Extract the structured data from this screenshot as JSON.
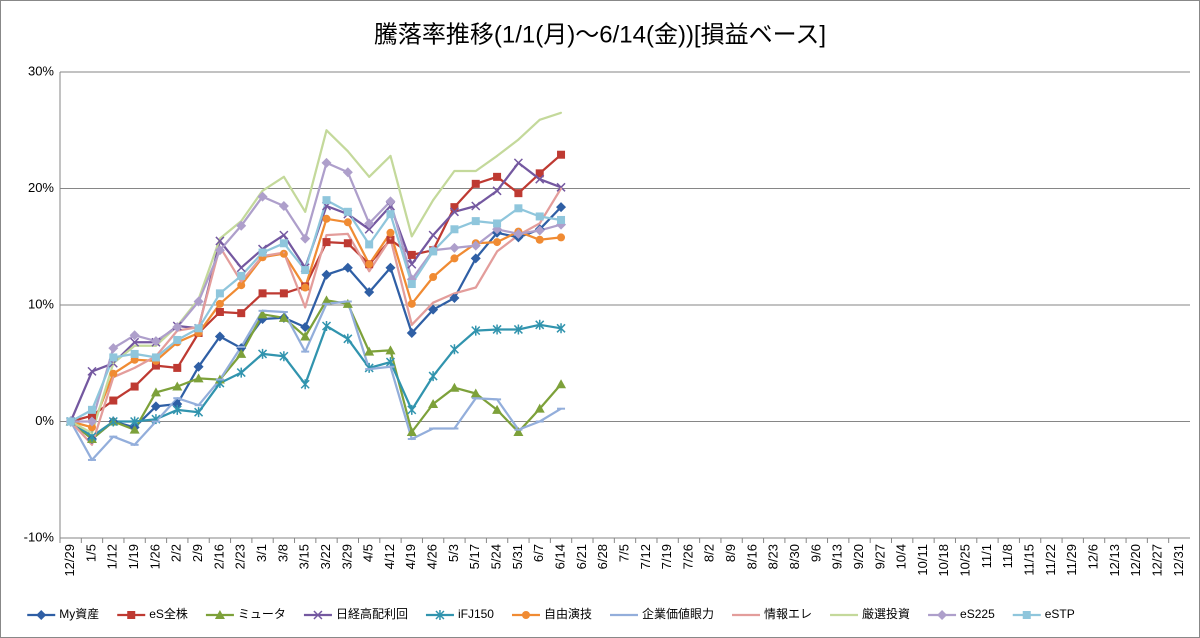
{
  "chart_data": {
    "type": "line",
    "title": "騰落率推移(1/1(月)～6/14(金))[損益ベース]",
    "categories": [
      "12/29",
      "1/5",
      "1/12",
      "1/19",
      "1/26",
      "2/2",
      "2/9",
      "2/16",
      "2/23",
      "3/1",
      "3/8",
      "3/15",
      "3/22",
      "3/29",
      "4/5",
      "4/12",
      "4/19",
      "4/26",
      "5/3",
      "5/17",
      "5/24",
      "5/31",
      "6/7",
      "6/14",
      "6/21",
      "6/28",
      "7/5",
      "7/12",
      "7/19",
      "7/26",
      "8/2",
      "8/9",
      "8/16",
      "8/23",
      "8/30",
      "9/6",
      "9/13",
      "9/20",
      "9/27",
      "10/4",
      "10/11",
      "10/18",
      "10/25",
      "11/1",
      "11/8",
      "11/15",
      "11/22",
      "11/29",
      "12/6",
      "12/13",
      "12/20",
      "12/27",
      "12/31"
    ],
    "ylim": [
      -10,
      30
    ],
    "yticks": [
      {
        "value": -10,
        "label": "-10%"
      },
      {
        "value": 0,
        "label": "0%"
      },
      {
        "value": 10,
        "label": "10%"
      },
      {
        "value": 20,
        "label": "20%"
      },
      {
        "value": 30,
        "label": "30%"
      }
    ],
    "grid": true,
    "legend": "bottom",
    "series": [
      {
        "name": "My資産",
        "color": "#2f5fa5",
        "marker": "diamond",
        "values": [
          0,
          -1.5,
          0,
          -0.5,
          1.3,
          1.5,
          4.7,
          7.3,
          6.3,
          8.8,
          8.9,
          8.1,
          12.6,
          13.2,
          11.1,
          13.2,
          7.6,
          9.6,
          10.6,
          14.0,
          16.2,
          15.8,
          16.5,
          18.4,
          null,
          null,
          null,
          null,
          null,
          null,
          null,
          null,
          null,
          null,
          null,
          null,
          null,
          null,
          null,
          null,
          null,
          null,
          null,
          null,
          null,
          null,
          null,
          null,
          null,
          null,
          null,
          null,
          null
        ]
      },
      {
        "name": "eS全株",
        "color": "#be3a32",
        "marker": "square",
        "values": [
          0,
          0.5,
          1.8,
          3.0,
          4.8,
          4.6,
          7.6,
          9.4,
          9.3,
          11.0,
          11.0,
          11.6,
          15.4,
          15.3,
          13.5,
          15.6,
          14.3,
          14.7,
          18.4,
          20.4,
          21.0,
          19.6,
          21.3,
          22.9,
          null,
          null,
          null,
          null,
          null,
          null,
          null,
          null,
          null,
          null,
          null,
          null,
          null,
          null,
          null,
          null,
          null,
          null,
          null,
          null,
          null,
          null,
          null,
          null,
          null,
          null,
          null,
          null,
          null
        ]
      },
      {
        "name": "ミュータ",
        "color": "#7da13a",
        "marker": "triangle",
        "values": [
          0,
          -1.5,
          0,
          -0.7,
          2.5,
          3.0,
          3.7,
          3.6,
          5.8,
          9.2,
          8.9,
          7.3,
          10.4,
          10.1,
          6.0,
          6.1,
          -0.9,
          1.5,
          2.9,
          2.4,
          1.0,
          -0.9,
          1.1,
          3.2,
          null,
          null,
          null,
          null,
          null,
          null,
          null,
          null,
          null,
          null,
          null,
          null,
          null,
          null,
          null,
          null,
          null,
          null,
          null,
          null,
          null,
          null,
          null,
          null,
          null,
          null,
          null,
          null,
          null
        ]
      },
      {
        "name": "日経高配利回",
        "color": "#7458a0",
        "marker": "x",
        "values": [
          0,
          4.3,
          5.0,
          6.8,
          6.8,
          8.2,
          8.0,
          15.5,
          13.2,
          14.8,
          16.0,
          13.2,
          18.5,
          17.8,
          16.5,
          18.5,
          13.5,
          16.0,
          18.0,
          18.5,
          19.8,
          22.2,
          20.8,
          20.1,
          null,
          null,
          null,
          null,
          null,
          null,
          null,
          null,
          null,
          null,
          null,
          null,
          null,
          null,
          null,
          null,
          null,
          null,
          null,
          null,
          null,
          null,
          null,
          null,
          null,
          null,
          null,
          null,
          null
        ]
      },
      {
        "name": "iFJ150",
        "color": "#3194ae",
        "marker": "star",
        "values": [
          0,
          -1.3,
          0,
          0,
          0.2,
          1.0,
          0.8,
          3.3,
          4.2,
          5.8,
          5.6,
          3.2,
          8.2,
          7.1,
          4.6,
          5.1,
          1.0,
          3.9,
          6.2,
          7.8,
          7.9,
          7.9,
          8.3,
          8.0,
          null,
          null,
          null,
          null,
          null,
          null,
          null,
          null,
          null,
          null,
          null,
          null,
          null,
          null,
          null,
          null,
          null,
          null,
          null,
          null,
          null,
          null,
          null,
          null,
          null,
          null,
          null,
          null,
          null
        ]
      },
      {
        "name": "自由演技",
        "color": "#f08b33",
        "marker": "circle",
        "values": [
          0,
          -0.5,
          4.1,
          5.3,
          5.2,
          6.8,
          7.6,
          10.1,
          11.7,
          14.1,
          14.4,
          11.5,
          17.4,
          17.1,
          13.5,
          16.2,
          10.1,
          12.4,
          14.0,
          15.3,
          15.4,
          16.3,
          15.6,
          15.8,
          null,
          null,
          null,
          null,
          null,
          null,
          null,
          null,
          null,
          null,
          null,
          null,
          null,
          null,
          null,
          null,
          null,
          null,
          null,
          null,
          null,
          null,
          null,
          null,
          null,
          null,
          null,
          null,
          null
        ]
      },
      {
        "name": "企業価値眼力",
        "color": "#93aedb",
        "marker": "dash",
        "values": [
          0,
          -3.3,
          -1.3,
          -2.0,
          0,
          2.0,
          1.4,
          3.6,
          6.4,
          9.5,
          9.4,
          6.0,
          10.1,
          10.3,
          4.5,
          4.7,
          -1.5,
          -0.6,
          -0.6,
          2.0,
          1.9,
          -0.7,
          0,
          1.1,
          null,
          null,
          null,
          null,
          null,
          null,
          null,
          null,
          null,
          null,
          null,
          null,
          null,
          null,
          null,
          null,
          null,
          null,
          null,
          null,
          null,
          null,
          null,
          null,
          null,
          null,
          null,
          null,
          null
        ]
      },
      {
        "name": "情報エレ",
        "color": "#e39d9b",
        "marker": "none",
        "values": [
          0,
          -2.0,
          3.8,
          4.6,
          5.6,
          7.8,
          8.1,
          15.0,
          12.0,
          14.2,
          14.5,
          9.8,
          16.0,
          16.1,
          12.9,
          15.7,
          8.3,
          10.2,
          11.0,
          11.5,
          14.6,
          16.0,
          17.0,
          20.0,
          null,
          null,
          null,
          null,
          null,
          null,
          null,
          null,
          null,
          null,
          null,
          null,
          null,
          null,
          null,
          null,
          null,
          null,
          null,
          null,
          null,
          null,
          null,
          null,
          null,
          null,
          null,
          null,
          null
        ]
      },
      {
        "name": "厳選投資",
        "color": "#c4d99b",
        "marker": "none",
        "values": [
          0,
          -1.0,
          5.0,
          6.5,
          6.5,
          8.2,
          10.5,
          15.7,
          17.2,
          19.8,
          21.0,
          18.0,
          25.0,
          23.2,
          21.0,
          22.8,
          15.9,
          19.0,
          21.5,
          21.5,
          22.8,
          24.2,
          25.9,
          26.5,
          null,
          null,
          null,
          null,
          null,
          null,
          null,
          null,
          null,
          null,
          null,
          null,
          null,
          null,
          null,
          null,
          null,
          null,
          null,
          null,
          null,
          null,
          null,
          null,
          null,
          null,
          null,
          null,
          null
        ]
      },
      {
        "name": "eS225",
        "color": "#ae9fcb",
        "marker": "diamond",
        "values": [
          0,
          0,
          6.3,
          7.4,
          6.9,
          8.1,
          10.3,
          14.7,
          16.8,
          19.3,
          18.5,
          15.7,
          22.2,
          21.4,
          17.0,
          18.9,
          12.2,
          14.7,
          14.9,
          15.1,
          16.5,
          16.1,
          16.4,
          16.9,
          null,
          null,
          null,
          null,
          null,
          null,
          null,
          null,
          null,
          null,
          null,
          null,
          null,
          null,
          null,
          null,
          null,
          null,
          null,
          null,
          null,
          null,
          null,
          null,
          null,
          null,
          null,
          null,
          null
        ]
      },
      {
        "name": "eSTP",
        "color": "#8fc6dc",
        "marker": "square",
        "values": [
          0,
          1.0,
          5.5,
          5.8,
          5.5,
          7.0,
          8.0,
          11.0,
          12.5,
          14.5,
          15.3,
          13.0,
          19.0,
          18.0,
          15.2,
          17.8,
          11.8,
          14.6,
          16.5,
          17.2,
          17.0,
          18.3,
          17.6,
          17.3,
          null,
          null,
          null,
          null,
          null,
          null,
          null,
          null,
          null,
          null,
          null,
          null,
          null,
          null,
          null,
          null,
          null,
          null,
          null,
          null,
          null,
          null,
          null,
          null,
          null,
          null,
          null,
          null,
          null
        ]
      }
    ]
  }
}
